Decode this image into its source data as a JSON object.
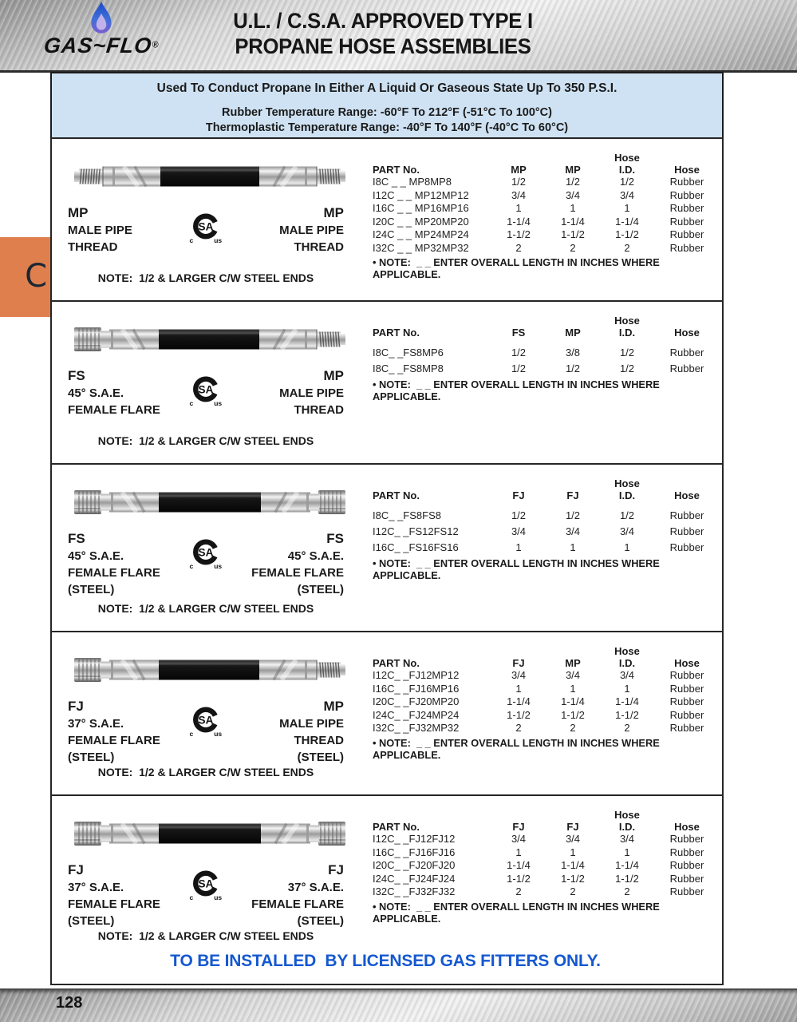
{
  "header": {
    "brand": "GAS~FLO",
    "registered_mark": "®",
    "title_line1": "U.L. / C.S.A. APPROVED TYPE I",
    "title_line2": "PROPANE HOSE ASSEMBLIES"
  },
  "banners": {
    "usage": "Used To Conduct Propane In Either A Liquid Or Gaseous State Up To 350 P.S.I.",
    "temp_line1": "Rubber Temperature Range: -60°F To 212°F (-51°C To 100°C)",
    "temp_line2": "Thermoplastic Temperature Range: -40°F To 140°F (-40°C To 60°C)"
  },
  "side_tab": {
    "letter": "C",
    "color": "#df7f4e"
  },
  "colors": {
    "banner_blue": "#cfe2f3",
    "warning_blue": "#1558d0",
    "tab_orange": "#df7f4e"
  },
  "csa_mark": {
    "inner": "SA",
    "left_sub": "c",
    "right_sub": "us"
  },
  "sections": [
    {
      "hose": {
        "left_end": "male",
        "right_end": "male"
      },
      "left_label": [
        "MP",
        "MALE PIPE",
        "THREAD"
      ],
      "right_label": [
        "MP",
        "MALE PIPE",
        "THREAD"
      ],
      "note": "NOTE:  1/2 & LARGER C/W STEEL ENDS",
      "table": {
        "headers": [
          "PART No.",
          "MP",
          "MP",
          "Hose\nI.D.",
          "Hose"
        ],
        "rows": [
          [
            "I8C _ _ MP8MP8",
            "1/2",
            "1/2",
            "1/2",
            "Rubber"
          ],
          [
            "I12C _ _ MP12MP12",
            "3/4",
            "3/4",
            "3/4",
            "Rubber"
          ],
          [
            "I16C _ _ MP16MP16",
            "1",
            "1",
            "1",
            "Rubber"
          ],
          [
            "I20C _ _ MP20MP20",
            "1-1/4",
            "1-1/4",
            "1-1/4",
            "Rubber"
          ],
          [
            "I24C _ _ MP24MP24",
            "1-1/2",
            "1-1/2",
            "1-1/2",
            "Rubber"
          ],
          [
            "I32C _ _ MP32MP32",
            "2",
            "2",
            "2",
            "Rubber"
          ]
        ],
        "note": "• NOTE:  _ _ ENTER OVERALL LENGTH IN INCHES WHERE APPLICABLE."
      }
    },
    {
      "hose": {
        "left_end": "female",
        "right_end": "male"
      },
      "left_label": [
        "FS",
        "45° S.A.E.",
        "FEMALE FLARE"
      ],
      "right_label": [
        "MP",
        "MALE PIPE",
        "THREAD"
      ],
      "note": "NOTE:  1/2 & LARGER C/W STEEL ENDS",
      "table": {
        "headers": [
          "PART No.",
          "FS",
          "MP",
          "Hose\nI.D.",
          "Hose"
        ],
        "rows": [
          [
            "I8C_ _FS8MP6",
            "1/2",
            "3/8",
            "1/2",
            "Rubber"
          ],
          [
            "I8C_ _FS8MP8",
            "1/2",
            "1/2",
            "1/2",
            "Rubber"
          ]
        ],
        "note": "• NOTE:  _ _ ENTER OVERALL LENGTH IN INCHES WHERE APPLICABLE."
      }
    },
    {
      "hose": {
        "left_end": "female",
        "right_end": "female"
      },
      "left_label": [
        "FS",
        "45° S.A.E.",
        "FEMALE FLARE",
        "(STEEL)"
      ],
      "right_label": [
        "FS",
        "45° S.A.E.",
        "FEMALE FLARE",
        "(STEEL)"
      ],
      "note": "NOTE:  1/2 & LARGER C/W STEEL ENDS",
      "table": {
        "headers": [
          "PART No.",
          "FJ",
          "FJ",
          "Hose\nI.D.",
          "Hose"
        ],
        "rows": [
          [
            "I8C_ _FS8FS8",
            "1/2",
            "1/2",
            "1/2",
            "Rubber"
          ],
          [
            "I12C_ _FS12FS12",
            "3/4",
            "3/4",
            "3/4",
            "Rubber"
          ],
          [
            "I16C_ _FS16FS16",
            "1",
            "1",
            "1",
            "Rubber"
          ]
        ],
        "note": "• NOTE:  _ _ ENTER OVERALL LENGTH IN INCHES WHERE APPLICABLE."
      }
    },
    {
      "hose": {
        "left_end": "female",
        "right_end": "male"
      },
      "left_label": [
        "FJ",
        "37° S.A.E.",
        "FEMALE FLARE",
        "(STEEL)"
      ],
      "right_label": [
        "MP",
        "MALE PIPE",
        "THREAD",
        "(STEEL)"
      ],
      "note": "NOTE:  1/2 & LARGER C/W STEEL ENDS",
      "table": {
        "headers": [
          "PART No.",
          "FJ",
          "MP",
          "Hose\nI.D.",
          "Hose"
        ],
        "rows": [
          [
            "I12C_ _FJ12MP12",
            "3/4",
            "3/4",
            "3/4",
            "Rubber"
          ],
          [
            "I16C_ _FJ16MP16",
            "1",
            "1",
            "1",
            "Rubber"
          ],
          [
            "I20C_ _FJ20MP20",
            "1-1/4",
            "1-1/4",
            "1-1/4",
            "Rubber"
          ],
          [
            "I24C_ _FJ24MP24",
            "1-1/2",
            "1-1/2",
            "1-1/2",
            "Rubber"
          ],
          [
            "I32C_ _FJ32MP32",
            "2",
            "2",
            "2",
            "Rubber"
          ]
        ],
        "note": "• NOTE:  _ _ ENTER OVERALL LENGTH IN INCHES WHERE APPLICABLE."
      }
    },
    {
      "hose": {
        "left_end": "female",
        "right_end": "female"
      },
      "left_label": [
        "FJ",
        "37° S.A.E.",
        "FEMALE FLARE",
        "(STEEL)"
      ],
      "right_label": [
        "FJ",
        "37° S.A.E.",
        "FEMALE FLARE",
        "(STEEL)"
      ],
      "note": "NOTE:  1/2 & LARGER C/W STEEL ENDS",
      "table": {
        "headers": [
          "PART No.",
          "FJ",
          "FJ",
          "Hose\nI.D.",
          "Hose"
        ],
        "rows": [
          [
            "I12C_ _FJ12FJ12",
            "3/4",
            "3/4",
            "3/4",
            "Rubber"
          ],
          [
            "I16C_ _FJ16FJ16",
            "1",
            "1",
            "1",
            "Rubber"
          ],
          [
            "I20C_ _FJ20FJ20",
            "1-1/4",
            "1-1/4",
            "1-1/4",
            "Rubber"
          ],
          [
            "I24C_ _FJ24FJ24",
            "1-1/2",
            "1-1/2",
            "1-1/2",
            "Rubber"
          ],
          [
            "I32C_ _FJ32FJ32",
            "2",
            "2",
            "2",
            "Rubber"
          ]
        ],
        "note": "• NOTE:  _ _ ENTER OVERALL LENGTH IN INCHES WHERE APPLICABLE."
      }
    }
  ],
  "footer": {
    "warning": "TO BE INSTALLED  BY LICENSED GAS FITTERS ONLY.",
    "page_number": "128"
  }
}
